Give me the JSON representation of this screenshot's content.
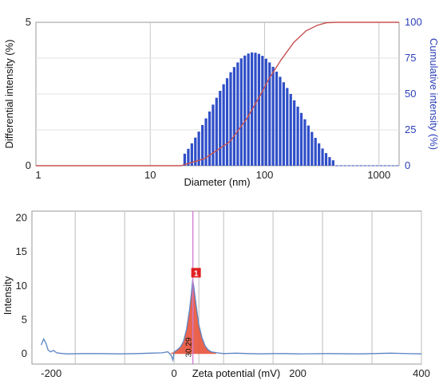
{
  "chart_data": [
    {
      "type": "bar",
      "x_scale": "log",
      "xlim": [
        1,
        1500
      ],
      "ylim_left": [
        0,
        5
      ],
      "ylim_right": [
        0,
        100
      ],
      "xlabel": "Diameter (nm)",
      "ylabel_left": "Differential intensity (%)",
      "ylabel_right": "Cumulative intensity (%)",
      "x_ticks": [
        1,
        10,
        100,
        1000
      ],
      "x_tick_labels": [
        "1",
        "10",
        "100",
        "1000"
      ],
      "y_ticks_left": [
        0,
        5
      ],
      "y_tick_labels_left": [
        "0",
        "5"
      ],
      "y_ticks_right": [
        0,
        25,
        50,
        75,
        100
      ],
      "y_tick_labels_right": [
        "0",
        "25",
        "50",
        "75",
        "100"
      ],
      "grid": true,
      "series": [
        {
          "kind": "bars",
          "axis": "left",
          "color": "#2f4fc8",
          "x": [
            20.0,
            21.5,
            23.1,
            24.8,
            26.6,
            28.6,
            30.7,
            33.0,
            35.4,
            38.0,
            40.8,
            43.8,
            47.0,
            50.5,
            54.2,
            58.2,
            62.5,
            67.1,
            72.1,
            77.4,
            83.1,
            89.2,
            95.8,
            102.9,
            110.5,
            118.6,
            127.3,
            136.7,
            146.8,
            157.6,
            169.2,
            181.7,
            195.1,
            209.5,
            224.9,
            241.5,
            259.3,
            278.4,
            299.0,
            321.0,
            344.7,
            370.1,
            397.4
          ],
          "values": [
            0.42,
            0.59,
            0.78,
            0.98,
            1.19,
            1.42,
            1.65,
            1.89,
            2.13,
            2.37,
            2.61,
            2.84,
            3.05,
            3.26,
            3.44,
            3.6,
            3.74,
            3.84,
            3.91,
            3.95,
            3.94,
            3.9,
            3.83,
            3.73,
            3.6,
            3.45,
            3.28,
            3.1,
            2.91,
            2.71,
            2.5,
            2.28,
            2.06,
            1.84,
            1.62,
            1.4,
            1.18,
            0.97,
            0.78,
            0.6,
            0.44,
            0.3,
            0.19
          ]
        },
        {
          "kind": "line",
          "axis": "right",
          "color": "#c85050",
          "name": "Cumulative",
          "x": [
            1,
            18.5,
            30,
            50,
            70,
            90,
            110,
            140,
            180,
            230,
            290,
            350,
            420,
            1500
          ],
          "values": [
            0,
            0,
            5,
            17,
            33,
            48,
            61,
            74,
            86,
            94,
            98,
            99.7,
            100,
            100
          ]
        }
      ]
    },
    {
      "type": "line",
      "xlim": [
        -230,
        400
      ],
      "ylim": [
        -1.5,
        21
      ],
      "xlabel": "Zeta potential (mV)",
      "ylabel": "Intensity",
      "x_ticks": [
        -200,
        0,
        200,
        400
      ],
      "x_tick_labels": [
        "-200",
        "0",
        "200",
        "400"
      ],
      "y_ticks": [
        0,
        5,
        10,
        15,
        20
      ],
      "y_tick_labels": [
        "0",
        "5",
        "10",
        "15",
        "20"
      ],
      "x_grid": [
        -160,
        -80,
        0,
        40,
        80,
        160,
        240,
        320,
        400
      ],
      "grid": true,
      "peak": {
        "label": "1",
        "value_label": "30.29",
        "x": 30.29,
        "height": 11.0
      },
      "series": [
        {
          "name": "Intensity",
          "color": "#5b84c4",
          "x": [
            -215,
            -211,
            -207,
            -204,
            -200,
            -195,
            -190,
            -180,
            -170,
            -150,
            -120,
            -90,
            -60,
            -40,
            -20,
            -10,
            -5,
            -2,
            0,
            2,
            5,
            10,
            15,
            20,
            25,
            28,
            30,
            32,
            35,
            40,
            45,
            50,
            55,
            60,
            70,
            80,
            100,
            120,
            140,
            160,
            180,
            200,
            250,
            300,
            350,
            400
          ],
          "values": [
            1.3,
            2.2,
            1.5,
            0.6,
            0.3,
            0.5,
            0.15,
            0.05,
            0.0,
            0.05,
            0.05,
            0.0,
            0.05,
            0.1,
            0.15,
            0.3,
            -0.2,
            -0.9,
            0.3,
            0.4,
            0.6,
            1.0,
            1.8,
            3.6,
            6.5,
            8.9,
            10.9,
            9.8,
            7.5,
            4.3,
            2.4,
            1.2,
            0.6,
            0.3,
            0.15,
            0.05,
            0.1,
            0.05,
            0.0,
            0.05,
            0.05,
            0.0,
            0.05,
            0.0,
            0.1,
            0.0
          ]
        }
      ],
      "fill": {
        "color": "#e8523a",
        "x": [
          -5,
          0,
          5,
          10,
          15,
          20,
          25,
          28,
          30,
          32,
          35,
          40,
          45,
          50,
          55,
          60,
          68
        ],
        "values": [
          0.15,
          0.25,
          0.6,
          1.0,
          1.8,
          3.6,
          6.5,
          8.9,
          10.9,
          9.8,
          7.5,
          4.3,
          2.4,
          1.2,
          0.6,
          0.3,
          0.1
        ]
      }
    }
  ]
}
